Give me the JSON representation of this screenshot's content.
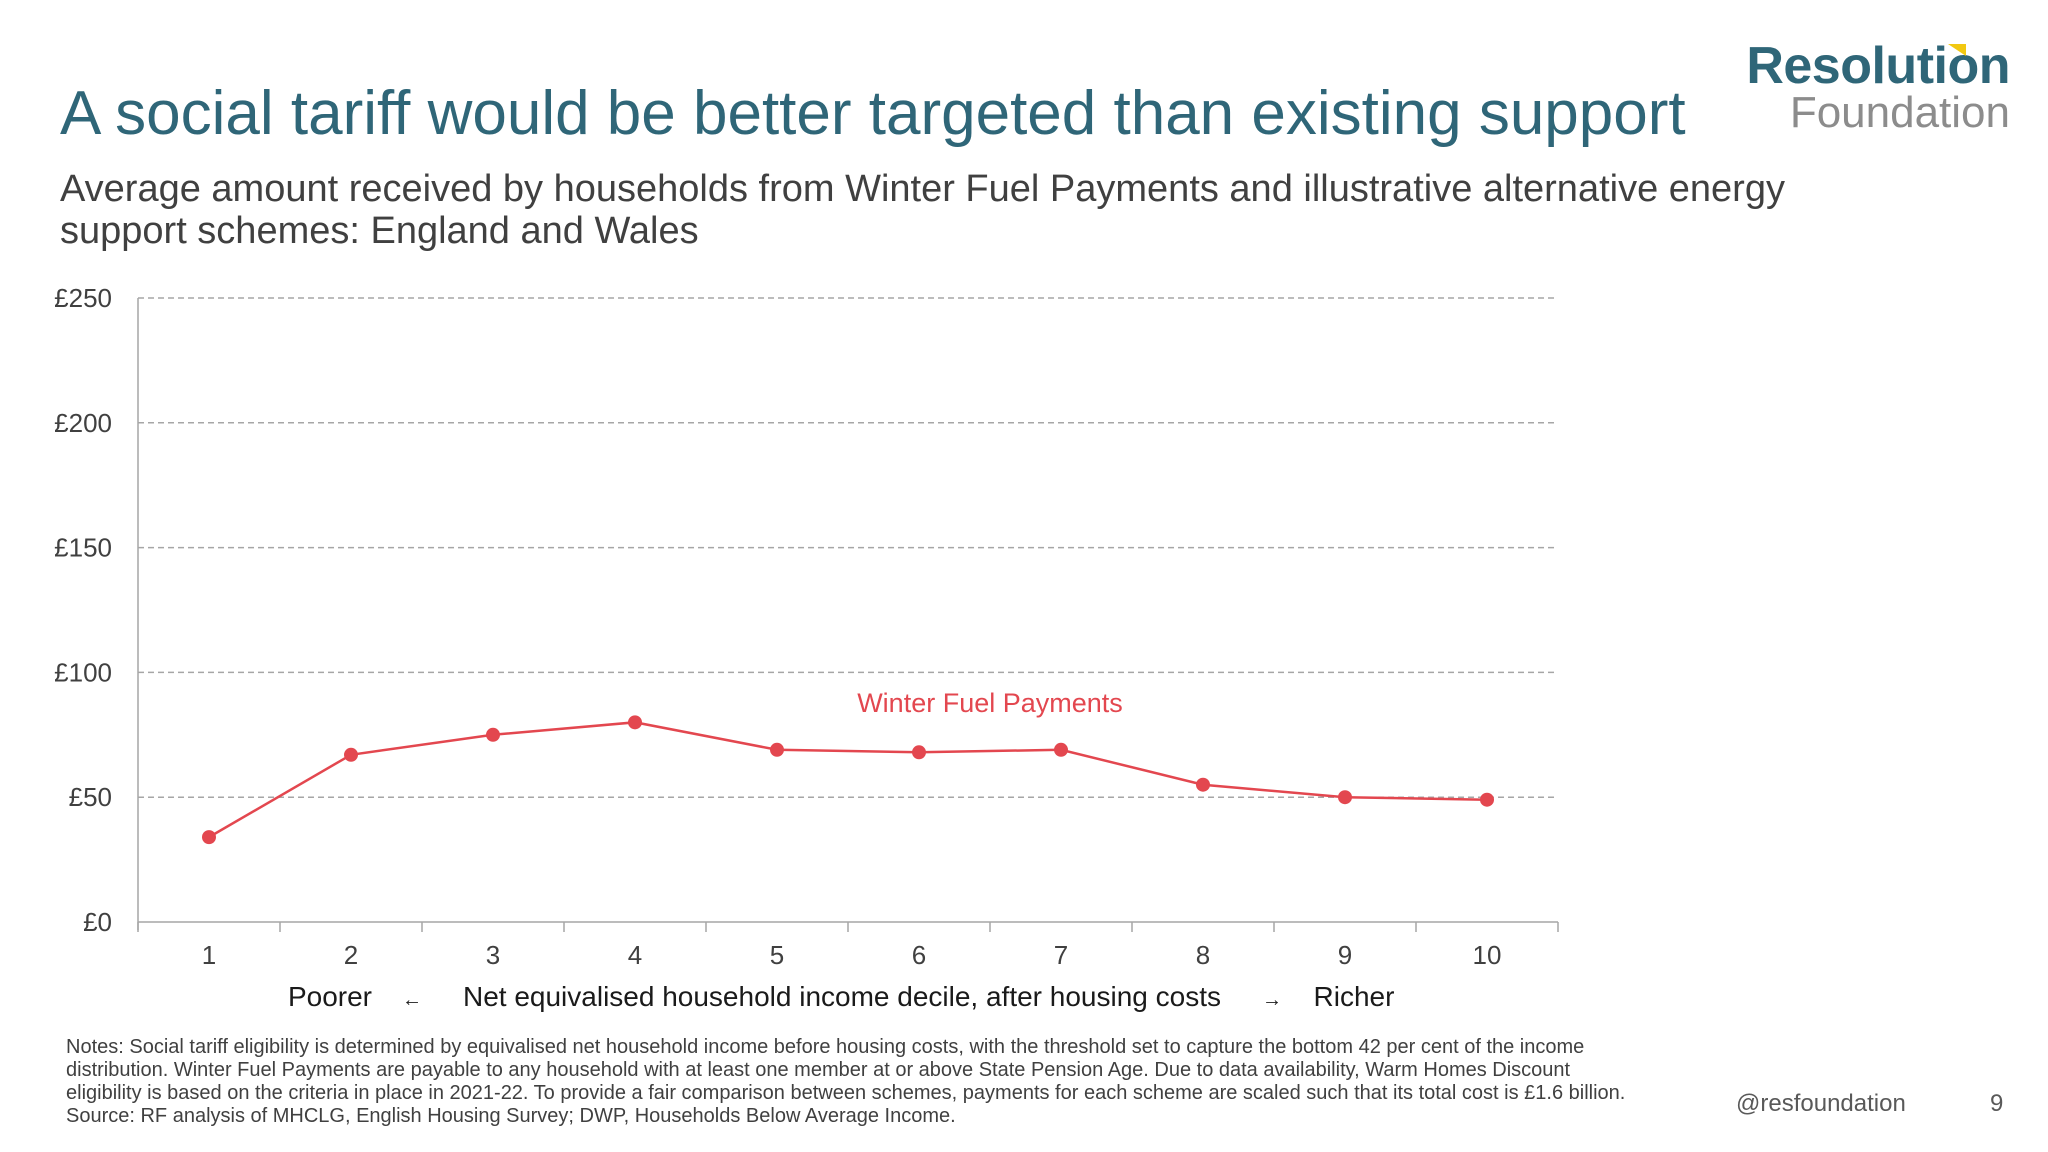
{
  "slide": {
    "title": "A social tariff would be better targeted than existing support",
    "subtitle": "Average amount received by households from Winter Fuel Payments and illustrative alternative energy support schemes: England and Wales",
    "page_number": "9",
    "handle": "@resfoundation"
  },
  "logo": {
    "main": "Resolution",
    "sub": "Foundation"
  },
  "notes": {
    "notes_text": "Notes: Social tariff eligibility is determined by equivalised net household income before housing costs, with the threshold set to capture the bottom 42 per cent of the income distribution. Winter Fuel Payments are payable to any household with at least one member at or above State Pension Age. Due to data availability, Warm Homes Discount eligibility is based on the criteria in place in 2021-22. To provide a fair comparison between schemes, payments for each scheme are scaled such that its total cost is £1.6 billion.",
    "source_text": "Source: RF analysis of MHCLG, English Housing Survey; DWP, Households Below Average Income."
  },
  "chart_data": {
    "type": "line",
    "title": "Average amount received by households from Winter Fuel Payments and illustrative alternative energy support schemes: England and Wales",
    "categories": [
      "1",
      "2",
      "3",
      "4",
      "5",
      "6",
      "7",
      "8",
      "9",
      "10"
    ],
    "series": [
      {
        "name": "Winter Fuel Payments",
        "color": "#e3474f",
        "values": [
          34,
          67,
          75,
          80,
          69,
          68,
          69,
          55,
          50,
          49
        ]
      }
    ],
    "ylim": [
      0,
      250
    ],
    "yticks": [
      0,
      50,
      100,
      150,
      200,
      250
    ],
    "ytick_labels": [
      "£0",
      "£50",
      "£100",
      "£150",
      "£200",
      "£250"
    ],
    "xlabel": "Net equivalised household income decile, after housing costs",
    "xlabel_left": "Poorer",
    "xlabel_left_arrow": "←",
    "xlabel_right_arrow": "→",
    "xlabel_right": "Richer",
    "grid": true,
    "colors": {
      "axis": "#a6a6a6",
      "grid": "#a6a6a6",
      "text": "#404040"
    }
  }
}
